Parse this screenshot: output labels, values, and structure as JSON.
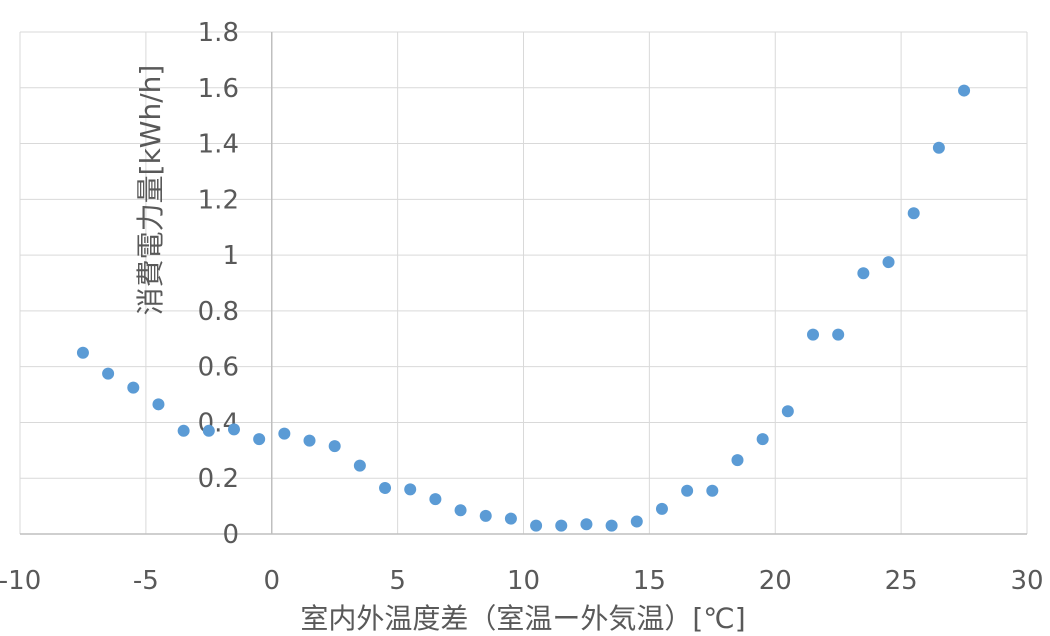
{
  "chart_data": {
    "type": "scatter",
    "title": "",
    "xlabel": "室内外温度差（室温ー外気温）[℃]",
    "ylabel": "消費電力量[kWh/h]",
    "xlim": [
      -10,
      30
    ],
    "ylim": [
      0,
      1.8
    ],
    "x_ticks": [
      "-10",
      "-5",
      "0",
      "5",
      "10",
      "15",
      "20",
      "25",
      "30"
    ],
    "y_ticks": [
      "0",
      "0.2",
      "0.4",
      "0.6",
      "0.8",
      "1",
      "1.2",
      "1.4",
      "1.6",
      "1.8"
    ],
    "grid": true,
    "marker_color": "#5b9bd5",
    "series": [
      {
        "points": [
          [
            -7.5,
            0.65
          ],
          [
            -6.5,
            0.575
          ],
          [
            -5.5,
            0.525
          ],
          [
            -4.5,
            0.465
          ],
          [
            -3.5,
            0.37
          ],
          [
            -2.5,
            0.37
          ],
          [
            -1.5,
            0.375
          ],
          [
            -0.5,
            0.34
          ],
          [
            0.5,
            0.36
          ],
          [
            1.5,
            0.335
          ],
          [
            2.5,
            0.315
          ],
          [
            3.5,
            0.245
          ],
          [
            4.5,
            0.165
          ],
          [
            5.5,
            0.16
          ],
          [
            6.5,
            0.125
          ],
          [
            7.5,
            0.085
          ],
          [
            8.5,
            0.065
          ],
          [
            9.5,
            0.055
          ],
          [
            10.5,
            0.03
          ],
          [
            11.5,
            0.03
          ],
          [
            12.5,
            0.035
          ],
          [
            13.5,
            0.03
          ],
          [
            14.5,
            0.045
          ],
          [
            15.5,
            0.09
          ],
          [
            16.5,
            0.155
          ],
          [
            17.5,
            0.155
          ],
          [
            18.5,
            0.265
          ],
          [
            19.5,
            0.34
          ],
          [
            20.5,
            0.44
          ],
          [
            21.5,
            0.715
          ],
          [
            22.5,
            0.715
          ],
          [
            23.5,
            0.935
          ],
          [
            24.5,
            0.975
          ],
          [
            25.5,
            1.15
          ],
          [
            26.5,
            1.385
          ],
          [
            27.5,
            1.59
          ]
        ]
      }
    ]
  }
}
